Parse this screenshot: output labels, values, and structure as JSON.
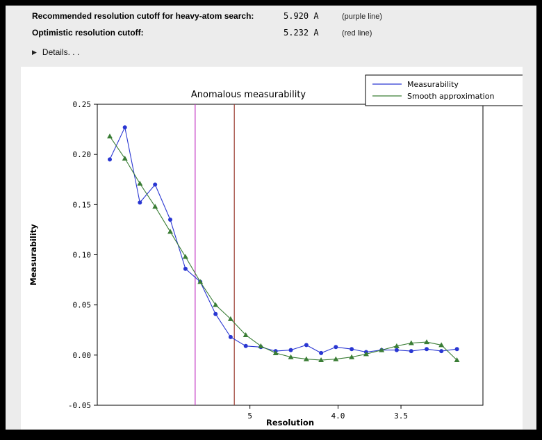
{
  "header": {
    "row1": {
      "label": "Recommended resolution cutoff for heavy-atom search:",
      "value": "5.920 A",
      "note": "(purple line)"
    },
    "row2": {
      "label": "Optimistic resolution cutoff:",
      "value": "5.232 A",
      "note": "(red line)"
    },
    "details_label": "Details. . ."
  },
  "chart_data": {
    "type": "line",
    "title": "Anomalous measurability",
    "xlabel": "Resolution",
    "ylabel": "Measurability",
    "x_axis": {
      "scale": "reciprocal (1/d), resolution in Angstrom decreasing left to right",
      "d_range": [
        8.82,
        3.01
      ],
      "ticks": [
        {
          "d": 5.0,
          "label": "5"
        },
        {
          "d": 4.0,
          "label": "4.0"
        },
        {
          "d": 3.5,
          "label": "3.5"
        }
      ]
    },
    "y_axis": {
      "range": [
        -0.05,
        0.25
      ],
      "ticks": [
        0.25,
        0.2,
        0.15,
        0.1,
        0.05,
        0.0,
        -0.05
      ],
      "tick_labels": [
        "0.25",
        "0.20",
        "0.15",
        "0.10",
        "0.05",
        "0.00",
        "-0.05"
      ]
    },
    "resolution_bins_d": [
      8.3,
      7.75,
      7.27,
      6.84,
      6.46,
      6.12,
      5.82,
      5.54,
      5.29,
      5.06,
      4.85,
      4.66,
      4.48,
      4.31,
      4.16,
      4.02,
      3.88,
      3.76,
      3.64,
      3.53,
      3.43,
      3.33,
      3.24,
      3.15
    ],
    "series": [
      {
        "name": "Measurability",
        "color": "#2936d2",
        "marker": "circle",
        "values": [
          0.195,
          0.227,
          0.152,
          0.17,
          0.135,
          0.086,
          0.073,
          0.041,
          0.018,
          0.009,
          0.008,
          0.004,
          0.005,
          0.01,
          0.002,
          0.008,
          0.006,
          0.003,
          0.005,
          0.005,
          0.004,
          0.006,
          0.004,
          0.006
        ]
      },
      {
        "name": "Smooth approximation",
        "color": "#3a7d35",
        "marker": "triangle",
        "values": [
          0.218,
          0.196,
          0.171,
          0.148,
          0.123,
          0.098,
          0.073,
          0.05,
          0.036,
          0.02,
          0.009,
          0.002,
          -0.002,
          -0.004,
          -0.005,
          -0.004,
          -0.002,
          0.001,
          0.005,
          0.009,
          0.012,
          0.013,
          0.01,
          -0.005
        ]
      }
    ],
    "vlines": [
      {
        "d": 5.92,
        "color": "#c437c4",
        "name": "purple line"
      },
      {
        "d": 5.232,
        "color": "#9a3a2e",
        "name": "red line"
      }
    ],
    "legend": {
      "position": "top-right"
    }
  }
}
